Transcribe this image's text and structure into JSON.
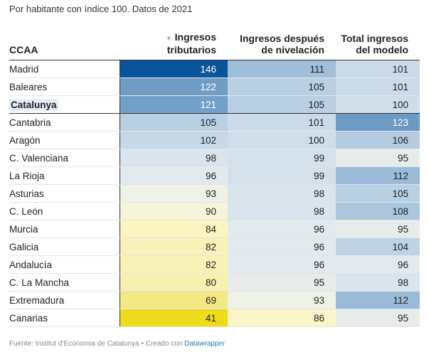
{
  "subtitle": "Por habitante con índice 100. Datos de 2021",
  "chart_data": {
    "type": "table",
    "columns": [
      "CCAA",
      "Ingresos tributarios",
      "Ingresos después de nivelación",
      "Total ingresos del modelo"
    ],
    "header_lines": [
      [
        "CCAA"
      ],
      [
        "Ingresos",
        "tributarios"
      ],
      [
        "Ingresos después",
        "de nivelación"
      ],
      [
        "Total ingresos",
        "del modelo"
      ]
    ],
    "sorted_column": "Ingresos tributarios",
    "sort_direction": "descending",
    "highlighted_row": "Catalunya",
    "rows": [
      [
        "Madrid",
        146,
        111,
        101
      ],
      [
        "Baleares",
        122,
        105,
        101
      ],
      [
        "Catalunya",
        121,
        105,
        100
      ],
      [
        "Cantabria",
        105,
        101,
        123
      ],
      [
        "Aragón",
        102,
        100,
        106
      ],
      [
        "C. Valenciana",
        98,
        99,
        95
      ],
      [
        "La Rioja",
        96,
        99,
        112
      ],
      [
        "Asturias",
        93,
        98,
        105
      ],
      [
        "C. León",
        90,
        98,
        108
      ],
      [
        "Murcia",
        84,
        96,
        95
      ],
      [
        "Galicia",
        82,
        96,
        104
      ],
      [
        "Andalucía",
        82,
        96,
        96
      ],
      [
        "C. La Mancha",
        80,
        95,
        98
      ],
      [
        "Extremadura",
        69,
        93,
        112
      ],
      [
        "Canarias",
        41,
        86,
        95
      ]
    ],
    "color_scale": [
      [
        41,
        "#eedc1a"
      ],
      [
        70,
        "#f3e988"
      ],
      [
        86,
        "#faf5c8"
      ],
      [
        92,
        "#f1f3e2"
      ],
      [
        96,
        "#e3eaee"
      ],
      [
        100,
        "#cfdde9"
      ],
      [
        110,
        "#a3c1da"
      ],
      [
        122,
        "#6f9dc6"
      ],
      [
        146,
        "#0a5499"
      ]
    ]
  },
  "footer": {
    "source": "Fuente: Institut d'Economia de Catalunya • Creado con ",
    "link": "Datawrapper"
  }
}
